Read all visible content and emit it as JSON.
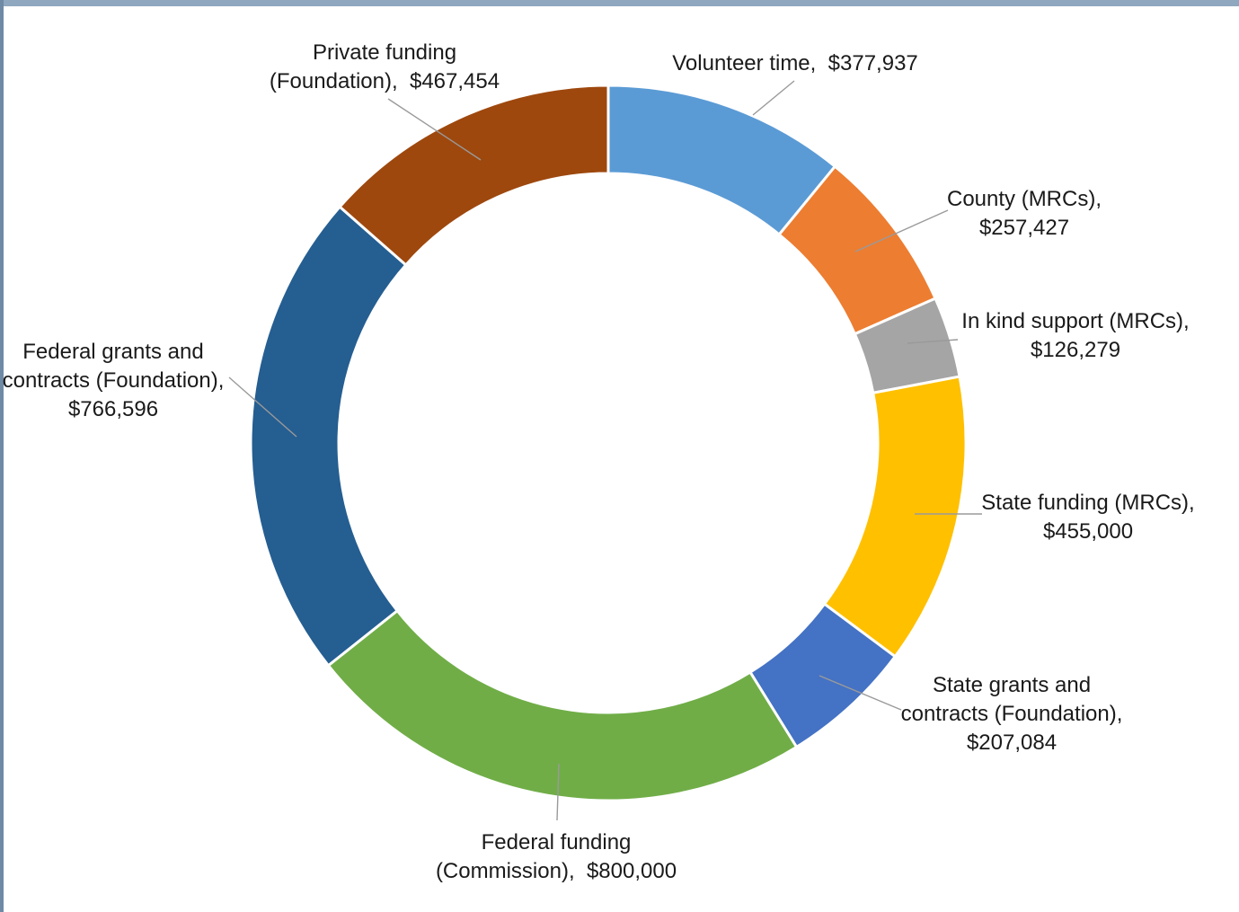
{
  "chart_data": {
    "type": "pie",
    "variant": "donut",
    "title": "",
    "legend": "none",
    "start_angle_deg": 0,
    "direction": "clockwise",
    "slices": [
      {
        "label_lines": [
          "Volunteer time,  $377,937"
        ],
        "value": 377937,
        "color": "#5b9bd5"
      },
      {
        "label_lines": [
          "County (MRCs),",
          "$257,427"
        ],
        "value": 257427,
        "color": "#ed7d31"
      },
      {
        "label_lines": [
          "In kind support (MRCs),",
          "$126,279"
        ],
        "value": 126279,
        "color": "#a5a5a5"
      },
      {
        "label_lines": [
          "State funding (MRCs),",
          "$455,000"
        ],
        "value": 455000,
        "color": "#ffc000"
      },
      {
        "label_lines": [
          "State grants and",
          "contracts (Foundation),",
          "$207,084"
        ],
        "value": 207084,
        "color": "#4472c4"
      },
      {
        "label_lines": [
          "Federal funding",
          "(Commission),  $800,000"
        ],
        "value": 800000,
        "color": "#70ad47"
      },
      {
        "label_lines": [
          "Federal grants and",
          "contracts (Foundation),",
          "$766,596"
        ],
        "value": 766596,
        "color": "#255e91"
      },
      {
        "label_lines": [
          "Private funding",
          "(Foundation),  $467,454"
        ],
        "value": 467454,
        "color": "#9e480e"
      }
    ]
  }
}
